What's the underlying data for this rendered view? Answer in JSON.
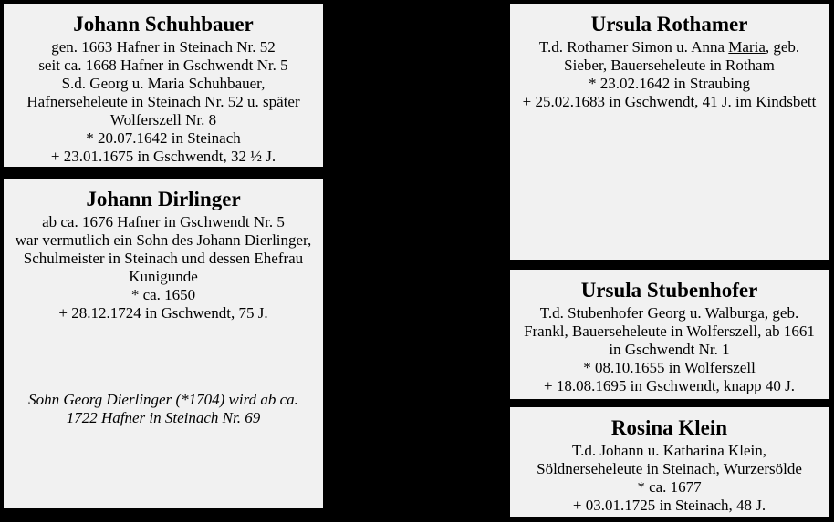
{
  "page": {
    "background_color": "#000000",
    "box_color": "#f1f1f1",
    "text_color": "#000000"
  },
  "boxes": [
    {
      "id": "schuhbauer",
      "title": "Johann Schuhbauer",
      "lines": [
        "gen. 1663 Hafner in Steinach Nr. 52",
        "seit ca. 1668 Hafner in Gschwendt Nr. 5",
        "S.d. Georg u. Maria Schuhbauer,",
        "Hafnerseheleute in Steinach Nr. 52 u. später",
        "Wolferszell Nr. 8",
        "* 20.07.1642 in Steinach",
        "+ 23.01.1675 in Gschwendt, 32 ½ J."
      ]
    },
    {
      "id": "dirlinger",
      "title": "Johann Dirlinger",
      "lines": [
        "ab ca. 1676 Hafner in Gschwendt Nr. 5",
        "war vermutlich ein Sohn des Johann Dierlinger,",
        "Schulmeister in Steinach und dessen Ehefrau",
        "Kunigunde",
        "* ca. 1650",
        "+ 28.12.1724 in Gschwendt, 75 J."
      ],
      "note_lines": [
        "Sohn Georg  Dierlinger (*1704) wird  ab ca.",
        "1722 Hafner in Steinach  Nr. 69"
      ]
    },
    {
      "id": "rothamer",
      "title": "Ursula Rothamer",
      "first_line": {
        "pre": "T.d. Rothamer Simon u. Anna ",
        "underlined": "Maria",
        "post": ", geb."
      },
      "lines": [
        "Sieber, Bauerseheleute in Rotham",
        "* 23.02.1642 in Straubing",
        "+ 25.02.1683 in Gschwendt, 41 J. im Kindsbett"
      ]
    },
    {
      "id": "stubenhofer",
      "title": "Ursula Stubenhofer",
      "lines": [
        "T.d. Stubenhofer Georg u. Walburga, geb.",
        "Frankl, Bauerseheleute in Wolferszell, ab 1661",
        "in Gschwendt Nr. 1",
        "* 08.10.1655 in Wolferszell",
        "+ 18.08.1695 in Gschwendt, knapp 40 J."
      ]
    },
    {
      "id": "klein",
      "title": "Rosina Klein",
      "lines": [
        "T.d. Johann u. Katharina Klein,",
        "Söldnerseheleute in Steinach, Wurzersölde",
        "* ca. 1677",
        "+ 03.01.1725 in Steinach, 48 J."
      ]
    }
  ]
}
